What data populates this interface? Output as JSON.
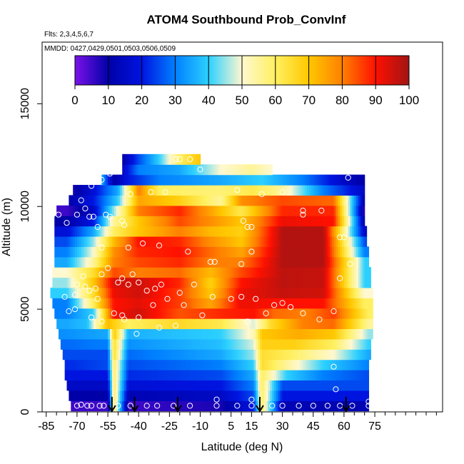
{
  "chart_data": {
    "type": "heatmap",
    "title": "ATOM4 Southbound Prob_ConvInf",
    "flights_note": "Flts: 2,3,4,5,6,7",
    "dates_note": "MMDD: 0427,0429,0501,0503,0506,0509",
    "xlabel": "Latitude (deg N)",
    "ylabel": "Altitude (m)",
    "xlim": [
      -87,
      108
    ],
    "ylim": [
      0,
      18000
    ],
    "x_ticks": [
      -85,
      -70,
      -55,
      -40,
      -25,
      -10,
      5,
      15,
      30,
      45,
      60,
      75
    ],
    "x_minor_step": 5,
    "y_ticks": [
      0,
      5000,
      10000,
      15000
    ],
    "colorbar": {
      "min": 0,
      "max": 100,
      "ticks": [
        0,
        10,
        20,
        30,
        40,
        50,
        60,
        70,
        80,
        90,
        100
      ],
      "colors": [
        "#7b12e8",
        "#0000a8",
        "#0014e0",
        "#0080ff",
        "#2cd0ff",
        "#fff8d0",
        "#fff060",
        "#ffc800",
        "#ff8000",
        "#ff1000",
        "#a01414"
      ]
    },
    "profile_arrows_lat": [
      -53,
      -42,
      -21,
      19,
      61
    ],
    "altitude_levels_m": [
      300,
      800,
      1300,
      1800,
      2300,
      2800,
      3300,
      3800,
      4300,
      4800,
      5300,
      5800,
      6300,
      6800,
      7300,
      7800,
      8300,
      8800,
      9300,
      9800,
      10300,
      10800,
      11300,
      11800,
      12300
    ],
    "level_lat_range": [
      [
        -73,
        72
      ],
      [
        -74,
        72
      ],
      [
        -75,
        72
      ],
      [
        -76,
        72
      ],
      [
        -76,
        72
      ],
      [
        -77,
        73
      ],
      [
        -78,
        73
      ],
      [
        -79,
        74
      ],
      [
        -80,
        74
      ],
      [
        -81,
        74
      ],
      [
        -82,
        74
      ],
      [
        -83,
        74
      ],
      [
        -82,
        73
      ],
      [
        -82,
        73
      ],
      [
        -81,
        72
      ],
      [
        -81,
        72
      ],
      [
        -81,
        71
      ],
      [
        -81,
        71
      ],
      [
        -81,
        70
      ],
      [
        -80,
        70
      ],
      [
        -74,
        70
      ],
      [
        -72,
        70
      ],
      [
        -58,
        70
      ],
      [
        -48,
        25
      ],
      [
        -48,
        -10
      ]
    ],
    "field_anchors_by_level": [
      [
        [
          -75,
          5
        ],
        [
          -55,
          5
        ],
        [
          -52,
          60
        ],
        [
          -45,
          5
        ],
        [
          0,
          8
        ],
        [
          16,
          20
        ],
        [
          20,
          60
        ],
        [
          30,
          12
        ],
        [
          72,
          12
        ]
      ],
      [
        [
          -75,
          10
        ],
        [
          -55,
          10
        ],
        [
          -52,
          60
        ],
        [
          -45,
          12
        ],
        [
          0,
          15
        ],
        [
          16,
          25
        ],
        [
          20,
          60
        ],
        [
          30,
          20
        ],
        [
          72,
          20
        ]
      ],
      [
        [
          -75,
          15
        ],
        [
          -55,
          15
        ],
        [
          -52,
          60
        ],
        [
          -45,
          18
        ],
        [
          0,
          20
        ],
        [
          16,
          30
        ],
        [
          20,
          60
        ],
        [
          30,
          25
        ],
        [
          72,
          25
        ]
      ],
      [
        [
          -75,
          20
        ],
        [
          -55,
          20
        ],
        [
          -52,
          60
        ],
        [
          -45,
          22
        ],
        [
          0,
          25
        ],
        [
          16,
          35
        ],
        [
          20,
          60
        ],
        [
          32,
          40
        ],
        [
          50,
          30
        ],
        [
          72,
          25
        ]
      ],
      [
        [
          -75,
          22
        ],
        [
          -55,
          25
        ],
        [
          -52,
          60
        ],
        [
          -45,
          25
        ],
        [
          0,
          30
        ],
        [
          16,
          40
        ],
        [
          20,
          65
        ],
        [
          32,
          55
        ],
        [
          50,
          40
        ],
        [
          72,
          30
        ]
      ],
      [
        [
          -75,
          25
        ],
        [
          -55,
          25
        ],
        [
          -52,
          65
        ],
        [
          -45,
          28
        ],
        [
          0,
          35
        ],
        [
          16,
          45
        ],
        [
          20,
          65
        ],
        [
          34,
          60
        ],
        [
          55,
          50
        ],
        [
          72,
          35
        ]
      ],
      [
        [
          -75,
          28
        ],
        [
          -55,
          30
        ],
        [
          -52,
          65
        ],
        [
          -45,
          32
        ],
        [
          0,
          38
        ],
        [
          16,
          48
        ],
        [
          20,
          68
        ],
        [
          36,
          68
        ],
        [
          55,
          60
        ],
        [
          72,
          40
        ]
      ],
      [
        [
          -75,
          32
        ],
        [
          -55,
          35
        ],
        [
          -52,
          70
        ],
        [
          -45,
          36
        ],
        [
          0,
          40
        ],
        [
          16,
          52
        ],
        [
          20,
          70
        ],
        [
          38,
          74
        ],
        [
          55,
          70
        ],
        [
          72,
          45
        ]
      ],
      [
        [
          -75,
          35
        ],
        [
          -65,
          38
        ],
        [
          -55,
          72
        ],
        [
          -45,
          60
        ],
        [
          -20,
          66
        ],
        [
          0,
          62
        ],
        [
          16,
          48
        ],
        [
          24,
          65
        ],
        [
          40,
          80
        ],
        [
          55,
          82
        ],
        [
          72,
          55
        ]
      ],
      [
        [
          -75,
          30
        ],
        [
          -62,
          40
        ],
        [
          -52,
          90
        ],
        [
          -40,
          95
        ],
        [
          -20,
          84
        ],
        [
          0,
          88
        ],
        [
          16,
          90
        ],
        [
          26,
          82
        ],
        [
          42,
          80
        ],
        [
          55,
          86
        ],
        [
          72,
          60
        ]
      ],
      [
        [
          -75,
          30
        ],
        [
          -62,
          60
        ],
        [
          -52,
          90
        ],
        [
          -40,
          93
        ],
        [
          -20,
          86
        ],
        [
          -5,
          75
        ],
        [
          10,
          92
        ],
        [
          30,
          90
        ],
        [
          50,
          90
        ],
        [
          70,
          60
        ]
      ],
      [
        [
          -75,
          40
        ],
        [
          -62,
          65
        ],
        [
          -52,
          92
        ],
        [
          -40,
          95
        ],
        [
          -20,
          86
        ],
        [
          -5,
          70
        ],
        [
          10,
          92
        ],
        [
          30,
          96
        ],
        [
          50,
          95
        ],
        [
          70,
          50
        ]
      ],
      [
        [
          -75,
          45
        ],
        [
          -62,
          70
        ],
        [
          -52,
          94
        ],
        [
          -40,
          95
        ],
        [
          -20,
          88
        ],
        [
          -5,
          68
        ],
        [
          10,
          90
        ],
        [
          30,
          97
        ],
        [
          50,
          96
        ],
        [
          70,
          40
        ]
      ],
      [
        [
          -75,
          50
        ],
        [
          -62,
          65
        ],
        [
          -52,
          85
        ],
        [
          -40,
          80
        ],
        [
          -20,
          82
        ],
        [
          -5,
          72
        ],
        [
          10,
          85
        ],
        [
          30,
          97
        ],
        [
          50,
          96
        ],
        [
          70,
          40
        ]
      ],
      [
        [
          -75,
          35
        ],
        [
          -62,
          55
        ],
        [
          -52,
          80
        ],
        [
          -40,
          85
        ],
        [
          -20,
          88
        ],
        [
          -5,
          80
        ],
        [
          10,
          80
        ],
        [
          30,
          98
        ],
        [
          50,
          98
        ],
        [
          70,
          40
        ]
      ],
      [
        [
          -75,
          30
        ],
        [
          -62,
          50
        ],
        [
          -52,
          78
        ],
        [
          -40,
          88
        ],
        [
          -20,
          90
        ],
        [
          -5,
          82
        ],
        [
          10,
          75
        ],
        [
          30,
          98
        ],
        [
          50,
          98
        ],
        [
          70,
          30
        ]
      ],
      [
        [
          -75,
          25
        ],
        [
          -62,
          45
        ],
        [
          -52,
          72
        ],
        [
          -40,
          90
        ],
        [
          -20,
          88
        ],
        [
          -5,
          78
        ],
        [
          10,
          70
        ],
        [
          30,
          98
        ],
        [
          50,
          98
        ],
        [
          70,
          25
        ]
      ],
      [
        [
          -75,
          18
        ],
        [
          -62,
          35
        ],
        [
          -52,
          60
        ],
        [
          -40,
          70
        ],
        [
          -20,
          80
        ],
        [
          -5,
          72
        ],
        [
          10,
          68
        ],
        [
          30,
          98
        ],
        [
          50,
          98
        ],
        [
          70,
          15
        ]
      ],
      [
        [
          -75,
          10
        ],
        [
          -62,
          20
        ],
        [
          -52,
          55
        ],
        [
          -40,
          70
        ],
        [
          -20,
          85
        ],
        [
          -5,
          78
        ],
        [
          10,
          70
        ],
        [
          30,
          92
        ],
        [
          55,
          90
        ],
        [
          70,
          10
        ]
      ],
      [
        [
          -75,
          5
        ],
        [
          -62,
          15
        ],
        [
          -52,
          45
        ],
        [
          -40,
          80
        ],
        [
          -20,
          88
        ],
        [
          -5,
          75
        ],
        [
          10,
          62
        ],
        [
          30,
          88
        ],
        [
          55,
          88
        ],
        [
          70,
          5
        ]
      ],
      [
        [
          -75,
          10
        ],
        [
          -62,
          20
        ],
        [
          -50,
          40
        ],
        [
          -40,
          75
        ],
        [
          -20,
          68
        ],
        [
          0,
          55
        ],
        [
          10,
          78
        ],
        [
          30,
          85
        ],
        [
          55,
          82
        ],
        [
          70,
          10
        ]
      ],
      [
        [
          -72,
          8
        ],
        [
          -62,
          18
        ],
        [
          -50,
          35
        ],
        [
          -40,
          80
        ],
        [
          -30,
          60
        ],
        [
          0,
          58
        ],
        [
          15,
          62
        ],
        [
          30,
          55
        ],
        [
          50,
          30
        ],
        [
          70,
          15
        ]
      ],
      [
        [
          -58,
          35
        ],
        [
          -52,
          10
        ],
        [
          -45,
          20
        ],
        [
          -30,
          30
        ],
        [
          0,
          35
        ],
        [
          20,
          40
        ],
        [
          40,
          30
        ],
        [
          60,
          15
        ],
        [
          70,
          10
        ]
      ],
      [
        [
          -48,
          15
        ],
        [
          -40,
          30
        ],
        [
          -20,
          35
        ],
        [
          0,
          50
        ],
        [
          15,
          55
        ],
        [
          25,
          50
        ]
      ],
      [
        [
          -48,
          10
        ],
        [
          -40,
          25
        ],
        [
          -30,
          40
        ],
        [
          -20,
          60
        ],
        [
          -10,
          70
        ]
      ]
    ],
    "obs_points": [
      [
        -75,
        300
      ],
      [
        -70,
        300
      ],
      [
        -68,
        350
      ],
      [
        -65,
        300
      ],
      [
        -63,
        300
      ],
      [
        -59,
        300
      ],
      [
        -57,
        300
      ],
      [
        -50,
        300
      ],
      [
        -44,
        300
      ],
      [
        -36,
        300
      ],
      [
        -31,
        300
      ],
      [
        -23,
        300
      ],
      [
        -15,
        300
      ],
      [
        -2,
        300
      ],
      [
        8,
        300
      ],
      [
        15,
        300
      ],
      [
        25,
        300
      ],
      [
        30,
        300
      ],
      [
        38,
        300
      ],
      [
        45,
        300
      ],
      [
        52,
        300
      ],
      [
        58,
        300
      ],
      [
        64,
        300
      ],
      [
        72,
        300
      ],
      [
        -2,
        600
      ],
      [
        15,
        600
      ],
      [
        72,
        500
      ],
      [
        56,
        1100
      ],
      [
        55,
        2200
      ],
      [
        -41,
        3800
      ],
      [
        -47,
        4500
      ],
      [
        -30,
        4100
      ],
      [
        -22,
        4200
      ],
      [
        -82,
        9600
      ],
      [
        -79,
        9600
      ],
      [
        -75,
        9200
      ],
      [
        -70,
        9600
      ],
      [
        -68,
        10300
      ],
      [
        -66,
        9900
      ],
      [
        -64,
        9500
      ],
      [
        -62,
        9500
      ],
      [
        -60,
        9000
      ],
      [
        -56,
        9600
      ],
      [
        -54,
        9500
      ],
      [
        -48,
        9300
      ],
      [
        -47,
        9100
      ],
      [
        -58,
        8000
      ],
      [
        -45,
        8000
      ],
      [
        -38,
        8200
      ],
      [
        -30,
        8100
      ],
      [
        -16,
        7800
      ],
      [
        -5,
        7300
      ],
      [
        -3,
        7300
      ],
      [
        10,
        7200
      ],
      [
        11,
        9300
      ],
      [
        13,
        9000
      ],
      [
        15,
        9000
      ],
      [
        15,
        7800
      ],
      [
        40,
        9600
      ],
      [
        49,
        9800
      ],
      [
        58,
        8500
      ],
      [
        60,
        8500
      ],
      [
        63,
        7200
      ],
      [
        58,
        6500
      ],
      [
        -76,
        5600
      ],
      [
        -74,
        4900
      ],
      [
        -71,
        5700
      ],
      [
        -70,
        6200
      ],
      [
        -67,
        6600
      ],
      [
        -66,
        6100
      ],
      [
        -64,
        5900
      ],
      [
        -61,
        6000
      ],
      [
        -58,
        6700
      ],
      [
        -55,
        7000
      ],
      [
        -50,
        6300
      ],
      [
        -48,
        6500
      ],
      [
        -45,
        6200
      ],
      [
        -43,
        6700
      ],
      [
        -40,
        6300
      ],
      [
        -36,
        5900
      ],
      [
        -32,
        6000
      ],
      [
        -29,
        6200
      ],
      [
        -26,
        5500
      ],
      [
        -20,
        5800
      ],
      [
        -18,
        5200
      ],
      [
        -13,
        6200
      ],
      [
        -9,
        4700
      ],
      [
        -4,
        5600
      ],
      [
        5,
        5500
      ],
      [
        10,
        5600
      ],
      [
        13,
        4400
      ],
      [
        17,
        5500
      ],
      [
        22,
        4800
      ],
      [
        26,
        5200
      ],
      [
        30,
        5300
      ],
      [
        34,
        5100
      ],
      [
        40,
        4800
      ],
      [
        48,
        4500
      ],
      [
        55,
        4900
      ],
      [
        -63,
        4600
      ],
      [
        -58,
        4400
      ],
      [
        -52,
        4800
      ],
      [
        -48,
        4700
      ],
      [
        -40,
        4600
      ],
      [
        -33,
        5200
      ],
      [
        -60,
        5500
      ],
      [
        -71,
        5000
      ],
      [
        -54,
        11600
      ],
      [
        -50,
        12000
      ],
      [
        -50,
        11800
      ],
      [
        -60,
        11400
      ],
      [
        -58,
        11300
      ],
      [
        -63,
        11000
      ],
      [
        -44,
        10600
      ],
      [
        -34,
        10700
      ],
      [
        -27,
        10700
      ],
      [
        -22,
        12300
      ],
      [
        -20,
        12300
      ],
      [
        -15,
        12300
      ],
      [
        -10,
        11800
      ],
      [
        8,
        10800
      ],
      [
        20,
        10600
      ],
      [
        30,
        10700
      ],
      [
        40,
        9800
      ],
      [
        62,
        11400
      ]
    ]
  }
}
